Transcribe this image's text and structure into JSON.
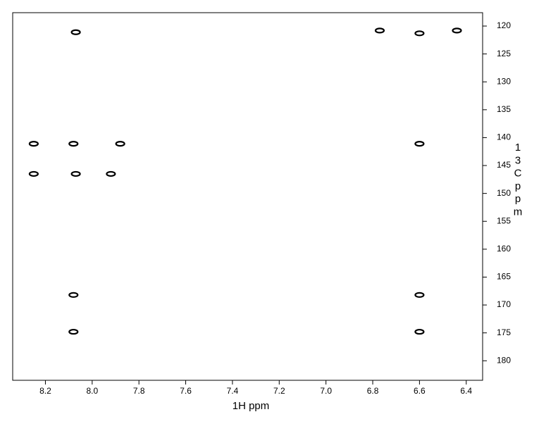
{
  "chart_data": {
    "type": "scatter",
    "x_label": "1H ppm",
    "y_label": "13C ppm",
    "x": [
      8.07,
      6.77,
      6.6,
      6.44,
      8.25,
      8.08,
      7.88,
      6.6,
      8.25,
      8.07,
      7.92,
      8.08,
      6.6,
      8.08,
      6.6
    ],
    "values": [
      121.1,
      120.8,
      121.3,
      120.8,
      141.1,
      141.1,
      141.1,
      141.1,
      146.5,
      146.5,
      146.5,
      168.2,
      168.2,
      174.8,
      174.8
    ],
    "color": "#000000",
    "xlim": [
      8.34,
      6.33
    ],
    "ylim": [
      117.6,
      183.5
    ],
    "xticks": [
      8.2,
      {
        "value": 8,
        "label": "8.0"
      },
      7.8,
      7.6,
      7.4,
      7.2,
      {
        "value": 7,
        "label": "7.0"
      },
      6.8,
      6.6,
      6.4
    ],
    "yticks": [
      120,
      125,
      130,
      135,
      140,
      145,
      150,
      155,
      160,
      165,
      170,
      175,
      180
    ]
  }
}
